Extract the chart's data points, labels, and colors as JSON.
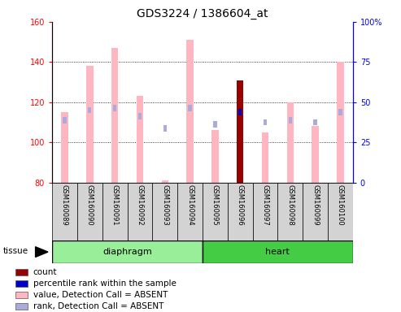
{
  "title": "GDS3224 / 1386604_at",
  "samples": [
    "GSM160089",
    "GSM160090",
    "GSM160091",
    "GSM160092",
    "GSM160093",
    "GSM160094",
    "GSM160095",
    "GSM160096",
    "GSM160097",
    "GSM160098",
    "GSM160099",
    "GSM160100"
  ],
  "value_absent": [
    115,
    138,
    147,
    123,
    81,
    151,
    106,
    null,
    105,
    120,
    108,
    140
  ],
  "rank_absent": [
    111,
    116,
    117,
    113,
    107,
    117,
    109,
    null,
    110,
    111,
    110,
    115
  ],
  "count_value": [
    null,
    null,
    null,
    null,
    null,
    null,
    null,
    131,
    null,
    null,
    null,
    null
  ],
  "percentile_value": [
    null,
    null,
    null,
    null,
    null,
    null,
    null,
    115,
    null,
    null,
    null,
    null
  ],
  "ylim_left": [
    80,
    160
  ],
  "ylim_right": [
    0,
    100
  ],
  "yticks_left": [
    80,
    100,
    120,
    140,
    160
  ],
  "yticks_right": [
    0,
    25,
    50,
    75,
    100
  ],
  "ytick_labels_right": [
    "0",
    "25",
    "50",
    "75",
    "100%"
  ],
  "pink_color": "#FFB6C1",
  "pink_rank_color": "#AAAADD",
  "dark_red_color": "#990000",
  "blue_color": "#0000CC",
  "group_diaphragm_color": "#99EE99",
  "group_heart_color": "#44CC44",
  "legend_items": [
    "count",
    "percentile rank within the sample",
    "value, Detection Call = ABSENT",
    "rank, Detection Call = ABSENT"
  ],
  "legend_colors": [
    "#990000",
    "#0000CC",
    "#FFB6C1",
    "#AAAADD"
  ]
}
